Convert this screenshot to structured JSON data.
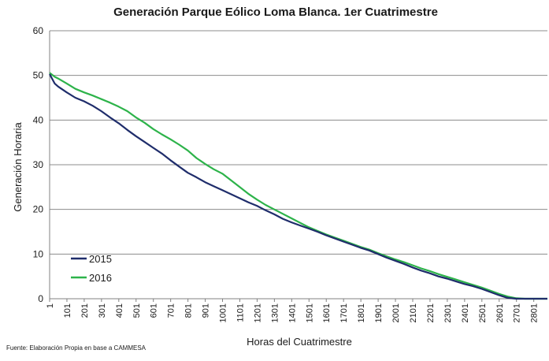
{
  "chart_data": {
    "type": "line",
    "title": "Generación Parque Eólico Loma Blanca. 1er Cuatrimestre",
    "xlabel": "Horas del Cuatrimestre",
    "ylabel": "Generación Horaria",
    "xlim": [
      1,
      2880
    ],
    "ylim": [
      0,
      60
    ],
    "y_ticks": [
      0,
      10,
      20,
      30,
      40,
      50,
      60
    ],
    "x_tick_labels": [
      "1",
      "101",
      "201",
      "301",
      "401",
      "501",
      "601",
      "701",
      "801",
      "901",
      "1001",
      "1101",
      "1201",
      "1301",
      "1401",
      "1501",
      "1601",
      "1701",
      "1801",
      "1901",
      "2001",
      "2101",
      "2201",
      "2301",
      "2401",
      "2501",
      "2601",
      "2701",
      "2801"
    ],
    "grid": "horizontal",
    "legend_position": "bottom-left",
    "series": [
      {
        "name": "2015",
        "color": "#1f2d6b",
        "x": [
          1,
          30,
          50,
          100,
          150,
          200,
          250,
          300,
          350,
          400,
          450,
          500,
          550,
          600,
          650,
          700,
          750,
          800,
          850,
          900,
          950,
          1000,
          1050,
          1100,
          1150,
          1200,
          1250,
          1300,
          1350,
          1400,
          1450,
          1500,
          1550,
          1600,
          1650,
          1700,
          1750,
          1800,
          1850,
          1900,
          1950,
          2000,
          2050,
          2100,
          2150,
          2200,
          2250,
          2300,
          2350,
          2400,
          2450,
          2500,
          2550,
          2600,
          2650,
          2700,
          2750,
          2770,
          2800,
          2880
        ],
        "values": [
          50.3,
          48.2,
          47.5,
          46.2,
          45.0,
          44.2,
          43.2,
          42.0,
          40.6,
          39.3,
          37.8,
          36.4,
          35.1,
          33.8,
          32.5,
          31.0,
          29.6,
          28.2,
          27.2,
          26.1,
          25.2,
          24.3,
          23.4,
          22.5,
          21.6,
          20.8,
          19.8,
          18.9,
          17.9,
          17.1,
          16.4,
          15.7,
          15.0,
          14.2,
          13.5,
          12.8,
          12.1,
          11.4,
          10.8,
          10.0,
          9.2,
          8.5,
          7.8,
          7.0,
          6.3,
          5.7,
          5.0,
          4.5,
          3.9,
          3.3,
          2.8,
          2.2,
          1.5,
          0.8,
          0.2,
          0.0,
          0.0,
          0.0,
          0.0,
          0.0
        ]
      },
      {
        "name": "2016",
        "color": "#2db34a",
        "x": [
          1,
          30,
          50,
          100,
          150,
          200,
          250,
          300,
          350,
          400,
          450,
          500,
          550,
          600,
          650,
          700,
          750,
          800,
          850,
          900,
          950,
          1000,
          1050,
          1100,
          1150,
          1200,
          1250,
          1300,
          1350,
          1400,
          1450,
          1500,
          1550,
          1600,
          1650,
          1700,
          1750,
          1800,
          1850,
          1900,
          1950,
          2000,
          2050,
          2100,
          2150,
          2200,
          2250,
          2300,
          2350,
          2400,
          2450,
          2500,
          2550,
          2600,
          2650,
          2700,
          2750,
          2770,
          2800,
          2880
        ],
        "values": [
          50.6,
          49.7,
          49.3,
          48.2,
          47.0,
          46.2,
          45.5,
          44.7,
          43.9,
          43.0,
          42.0,
          40.6,
          39.4,
          38.0,
          36.8,
          35.7,
          34.5,
          33.2,
          31.5,
          30.2,
          29.0,
          28.0,
          26.5,
          25.0,
          23.5,
          22.2,
          21.0,
          20.0,
          19.0,
          18.0,
          17.0,
          16.0,
          15.2,
          14.4,
          13.7,
          13.0,
          12.3,
          11.6,
          11.0,
          10.2,
          9.5,
          8.8,
          8.2,
          7.5,
          6.8,
          6.2,
          5.5,
          4.9,
          4.3,
          3.7,
          3.1,
          2.5,
          1.8,
          1.1,
          0.5,
          0.1,
          0.0,
          0.0,
          0.0,
          0.0
        ]
      }
    ],
    "source_note": "Fuente: Elaboración Propia en base a CAMMESA"
  }
}
